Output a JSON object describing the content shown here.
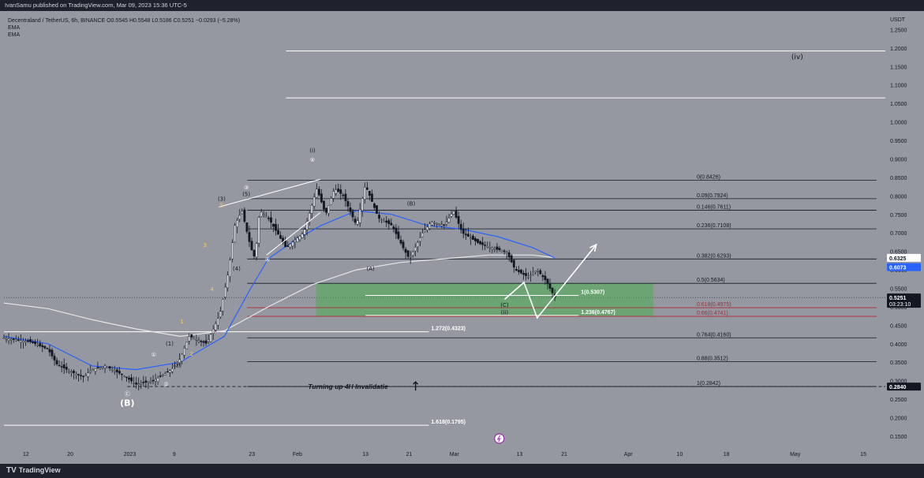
{
  "header": {
    "publish_line": "IvanSamu published on TradingView.com, Mar 09, 2023 15:36 UTC-5"
  },
  "legend": {
    "symbol_line": "Decentraland / TetherUS, 6h, BINANCE  O0.5545  H0.5548  L0.5186  C0.5251  −0.0293 (−5.28%)",
    "ema1": "EMA",
    "ema2": "EMA"
  },
  "footer": {
    "logo_text": "TradingView",
    "logo_mark": "TV"
  },
  "colors": {
    "background": "#9598a1",
    "candle": "#131722",
    "ema_fast": "#2962ff",
    "ema_slow": "#e6e6e6",
    "fib_line": "#131722",
    "fib_red": "#b22833",
    "zone_fill": "#4caf50",
    "white": "#ffffff",
    "yellow_label": "#f5d142",
    "last_price_bg": "#131722",
    "ema_tag_bg": "#2962ff"
  },
  "chart_data": {
    "type": "candlestick",
    "symbol": "Decentraland / TetherUS",
    "interval": "6h",
    "exchange": "BINANCE",
    "ohlc": {
      "open": 0.5545,
      "high": 0.5548,
      "low": 0.5186,
      "close": 0.5251,
      "change": -0.0293,
      "change_pct": -5.28
    },
    "y_axis": {
      "unit": "USDT",
      "min": 0.12,
      "max": 1.3,
      "scale": "linear",
      "grid": false,
      "ticks": [
        "1.2500",
        "1.2000",
        "1.1500",
        "1.1000",
        "1.0500",
        "1.0000",
        "0.9500",
        "0.9000",
        "0.8500",
        "0.8000",
        "0.7500",
        "0.7000",
        "0.6500",
        "0.6000",
        "0.5500",
        "0.5000",
        "0.4500",
        "0.4000",
        "0.3500",
        "0.3000",
        "0.2500",
        "0.2000",
        "0.1500"
      ]
    },
    "x_axis": {
      "ticks": [
        {
          "label": "12",
          "pos": 0.0256
        },
        {
          "label": "20",
          "pos": 0.0772
        },
        {
          "label": "2023",
          "pos": 0.1465
        },
        {
          "label": "9",
          "pos": 0.1982
        },
        {
          "label": "23",
          "pos": 0.2885
        },
        {
          "label": "Feb",
          "pos": 0.3415
        },
        {
          "label": "13",
          "pos": 0.4207
        },
        {
          "label": "21",
          "pos": 0.4715
        },
        {
          "label": "Mar",
          "pos": 0.5241
        },
        {
          "label": "13",
          "pos": 0.6
        },
        {
          "label": "21",
          "pos": 0.6519
        },
        {
          "label": "Apr",
          "pos": 0.7265
        },
        {
          "label": "10",
          "pos": 0.7864
        },
        {
          "label": "18",
          "pos": 0.8408
        },
        {
          "label": "May",
          "pos": 0.9207
        },
        {
          "label": "15",
          "pos": 1.0
        }
      ]
    },
    "price_path": [
      [
        0.0,
        0.415
      ],
      [
        0.015,
        0.41
      ],
      [
        0.03,
        0.405
      ],
      [
        0.05,
        0.385
      ],
      [
        0.06,
        0.345
      ],
      [
        0.075,
        0.325
      ],
      [
        0.09,
        0.31
      ],
      [
        0.1,
        0.33
      ],
      [
        0.115,
        0.34
      ],
      [
        0.135,
        0.315
      ],
      [
        0.15,
        0.29
      ],
      [
        0.17,
        0.3
      ],
      [
        0.19,
        0.33
      ],
      [
        0.2,
        0.36
      ],
      [
        0.21,
        0.42
      ],
      [
        0.23,
        0.4
      ],
      [
        0.245,
        0.48
      ],
      [
        0.255,
        0.6
      ],
      [
        0.262,
        0.72
      ],
      [
        0.27,
        0.76
      ],
      [
        0.28,
        0.66
      ],
      [
        0.285,
        0.63
      ],
      [
        0.29,
        0.76
      ],
      [
        0.3,
        0.74
      ],
      [
        0.32,
        0.66
      ],
      [
        0.34,
        0.7
      ],
      [
        0.355,
        0.82
      ],
      [
        0.365,
        0.75
      ],
      [
        0.375,
        0.82
      ],
      [
        0.385,
        0.8
      ],
      [
        0.4,
        0.72
      ],
      [
        0.41,
        0.83
      ],
      [
        0.425,
        0.74
      ],
      [
        0.44,
        0.72
      ],
      [
        0.455,
        0.65
      ],
      [
        0.46,
        0.63
      ],
      [
        0.475,
        0.7
      ],
      [
        0.485,
        0.73
      ],
      [
        0.5,
        0.72
      ],
      [
        0.51,
        0.76
      ],
      [
        0.52,
        0.7
      ],
      [
        0.54,
        0.67
      ],
      [
        0.56,
        0.655
      ],
      [
        0.57,
        0.65
      ],
      [
        0.58,
        0.6
      ],
      [
        0.595,
        0.58
      ],
      [
        0.605,
        0.6
      ],
      [
        0.615,
        0.57
      ],
      [
        0.625,
        0.525
      ]
    ],
    "ema_fast_path": [
      [
        0.0,
        0.42
      ],
      [
        0.05,
        0.4
      ],
      [
        0.1,
        0.34
      ],
      [
        0.15,
        0.33
      ],
      [
        0.2,
        0.35
      ],
      [
        0.25,
        0.42
      ],
      [
        0.28,
        0.55
      ],
      [
        0.3,
        0.63
      ],
      [
        0.33,
        0.68
      ],
      [
        0.36,
        0.72
      ],
      [
        0.4,
        0.76
      ],
      [
        0.44,
        0.75
      ],
      [
        0.48,
        0.72
      ],
      [
        0.52,
        0.71
      ],
      [
        0.56,
        0.69
      ],
      [
        0.6,
        0.66
      ],
      [
        0.625,
        0.632
      ]
    ],
    "ema_slow_path": [
      [
        0.0,
        0.51
      ],
      [
        0.05,
        0.495
      ],
      [
        0.1,
        0.465
      ],
      [
        0.15,
        0.44
      ],
      [
        0.2,
        0.42
      ],
      [
        0.25,
        0.435
      ],
      [
        0.3,
        0.5
      ],
      [
        0.35,
        0.56
      ],
      [
        0.4,
        0.6
      ],
      [
        0.45,
        0.62
      ],
      [
        0.5,
        0.63
      ],
      [
        0.55,
        0.64
      ],
      [
        0.6,
        0.64
      ],
      [
        0.625,
        0.633
      ]
    ],
    "fib_levels": [
      {
        "label": "0(0.8426)",
        "value": 0.8426,
        "color": "#131722"
      },
      {
        "label": "0.09(0.7924)",
        "value": 0.7924,
        "color": "#131722"
      },
      {
        "label": "0.146(0.7611)",
        "value": 0.7611,
        "color": "#131722"
      },
      {
        "label": "0.236(0.7108)",
        "value": 0.7108,
        "color": "#131722"
      },
      {
        "label": "0.382(0.6293)",
        "value": 0.6293,
        "color": "#131722"
      },
      {
        "label": "0.5(0.5634)",
        "value": 0.5634,
        "color": "#131722"
      },
      {
        "label": "0.618(0.4975)",
        "value": 0.4975,
        "color": "#b22833"
      },
      {
        "label": "0.66(0.4741)",
        "value": 0.4741,
        "color": "#b22833"
      },
      {
        "label": "0.764(0.4160)",
        "value": 0.416,
        "color": "#131722"
      },
      {
        "label": "0.88(0.3512)",
        "value": 0.3512,
        "color": "#131722"
      },
      {
        "label": "1(0.2842)",
        "value": 0.2842,
        "color": "#131722"
      }
    ],
    "extension_levels": [
      {
        "label": "1(0.5307)",
        "value": 0.5307
      },
      {
        "label": "1.236(0.4767)",
        "value": 0.4767
      },
      {
        "label": "1.272(0.4323)",
        "value": 0.4323
      },
      {
        "label": "1.618(0.1795)",
        "value": 0.1795
      }
    ],
    "horizontal_lines": [
      1.192,
      1.065
    ],
    "support_zone": {
      "from": 0.4741,
      "to": 0.5634
    },
    "price_tags": [
      {
        "value": 0.6325,
        "label": "0.6325",
        "bg": "#ffffff",
        "fg": "#131722"
      },
      {
        "value": 0.6073,
        "label": "0.6073",
        "bg": "#2962ff",
        "fg": "#ffffff"
      },
      {
        "value": 0.5251,
        "label": "0.5251",
        "sub": "03:23:10",
        "bg": "#131722",
        "fg": "#ffffff"
      },
      {
        "value": 0.284,
        "label": "0.2840",
        "bg": "#131722",
        "fg": "#ffffff"
      }
    ],
    "wave_labels": [
      {
        "text": "(iv)",
        "x": 0.9,
        "y": 1.17,
        "color": "#131722"
      },
      {
        "text": "(i)",
        "x": 0.35,
        "y": 0.918,
        "color": "#131722"
      },
      {
        "text": "⑤",
        "x": 0.35,
        "y": 0.892,
        "color": "#ffffff"
      },
      {
        "text": "③",
        "x": 0.275,
        "y": 0.818,
        "color": "#ffffff"
      },
      {
        "text": "(5)",
        "x": 0.275,
        "y": 0.8,
        "color": "#131722"
      },
      {
        "text": "(3)",
        "x": 0.247,
        "y": 0.787,
        "color": "#131722"
      },
      {
        "text": "5",
        "x": 0.247,
        "y": 0.77,
        "color": "#f5d142"
      },
      {
        "text": "3",
        "x": 0.228,
        "y": 0.662,
        "color": "#f5d142"
      },
      {
        "text": "4",
        "x": 0.236,
        "y": 0.543,
        "color": "#f5d142"
      },
      {
        "text": "1",
        "x": 0.202,
        "y": 0.455,
        "color": "#f5d142"
      },
      {
        "text": "2",
        "x": 0.213,
        "y": 0.367,
        "color": "#f5d142"
      },
      {
        "text": "(4)",
        "x": 0.264,
        "y": 0.598,
        "color": "#131722"
      },
      {
        "text": "④",
        "x": 0.299,
        "y": 0.623,
        "color": "#ffffff"
      },
      {
        "text": "(B)",
        "x": 0.462,
        "y": 0.774,
        "color": "#131722"
      },
      {
        "text": "(A)",
        "x": 0.416,
        "y": 0.598,
        "color": "#131722"
      },
      {
        "text": "(1)",
        "x": 0.188,
        "y": 0.395,
        "color": "#131722"
      },
      {
        "text": "(2)",
        "x": 0.197,
        "y": 0.337,
        "color": "#131722"
      },
      {
        "text": "①",
        "x": 0.17,
        "y": 0.365,
        "color": "#ffffff"
      },
      {
        "text": "②",
        "x": 0.184,
        "y": 0.285,
        "color": "#ffffff"
      },
      {
        "text": "Ⓒ",
        "x": 0.14,
        "y": 0.26,
        "color": "#ffffff"
      },
      {
        "text": "(B)",
        "x": 0.14,
        "y": 0.232,
        "color": "#ffffff"
      },
      {
        "text": "(C)",
        "x": 0.568,
        "y": 0.5,
        "color": "#131722"
      },
      {
        "text": "(ii)",
        "x": 0.568,
        "y": 0.48,
        "color": "#131722"
      }
    ],
    "annotations": [
      {
        "text": "Turning up 4H  Invalidatie",
        "x": 0.345,
        "y": 0.284
      }
    ],
    "projection_path": [
      [
        0.568,
        0.52
      ],
      [
        0.59,
        0.566
      ],
      [
        0.605,
        0.47
      ],
      [
        0.672,
        0.668
      ]
    ],
    "wedge_lines": [
      {
        "from": [
          0.244,
          0.77
        ],
        "to": [
          0.359,
          0.845
        ]
      },
      {
        "from": [
          0.298,
          0.64
        ],
        "to": [
          0.359,
          0.755
        ]
      }
    ]
  }
}
